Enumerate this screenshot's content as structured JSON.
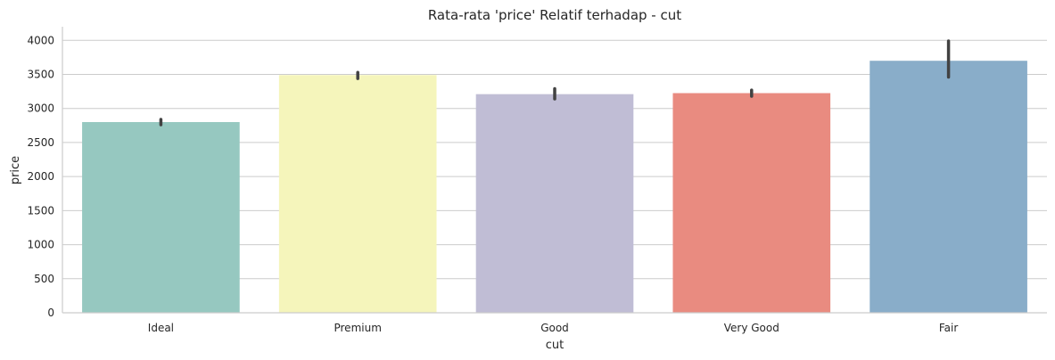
{
  "chart_data": {
    "type": "bar",
    "title": "Rata-rata 'price' Relatif terhadap - cut",
    "xlabel": "cut",
    "ylabel": "price",
    "ylim": [
      0,
      4200
    ],
    "yticks": [
      0,
      500,
      1000,
      1500,
      2000,
      2500,
      3000,
      3500,
      4000
    ],
    "grid": "horizontal",
    "categories": [
      "Ideal",
      "Premium",
      "Good",
      "Very Good",
      "Fair"
    ],
    "values": [
      2800,
      3490,
      3210,
      3225,
      3700
    ],
    "error_low": [
      2760,
      3440,
      3140,
      3180,
      3460
    ],
    "error_high": [
      2840,
      3530,
      3290,
      3270,
      3990
    ],
    "colors": [
      "#96c8c0",
      "#f5f5bb",
      "#c0bdd5",
      "#e98b80",
      "#89adc9"
    ]
  }
}
